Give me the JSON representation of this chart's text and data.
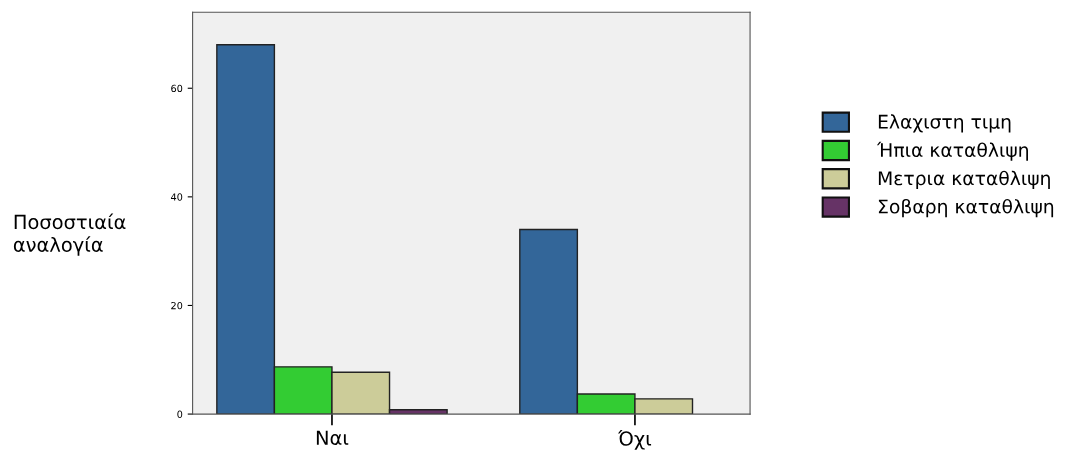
{
  "chart_data": {
    "type": "bar",
    "ylabel": "Ποσοστιαία\nαναλογία",
    "categories": [
      "Ναι",
      "Όχι"
    ],
    "series": [
      {
        "name": "Ελαχιστη τιμη",
        "color": "#336699",
        "values": [
          68,
          34
        ]
      },
      {
        "name": "Ήπια καταθλιψη",
        "color": "#33cc33",
        "values": [
          8.7,
          3.7
        ]
      },
      {
        "name": "Μετρια καταθλιψη",
        "color": "#cccc99",
        "values": [
          7.7,
          2.8
        ]
      },
      {
        "name": "Σοβαρη καταθλιψη",
        "color": "#663366",
        "values": [
          0.8,
          null
        ]
      }
    ],
    "ylim": [
      0,
      74
    ],
    "yticks": [
      0,
      20,
      40,
      60
    ],
    "grid": false,
    "legend": "right"
  }
}
